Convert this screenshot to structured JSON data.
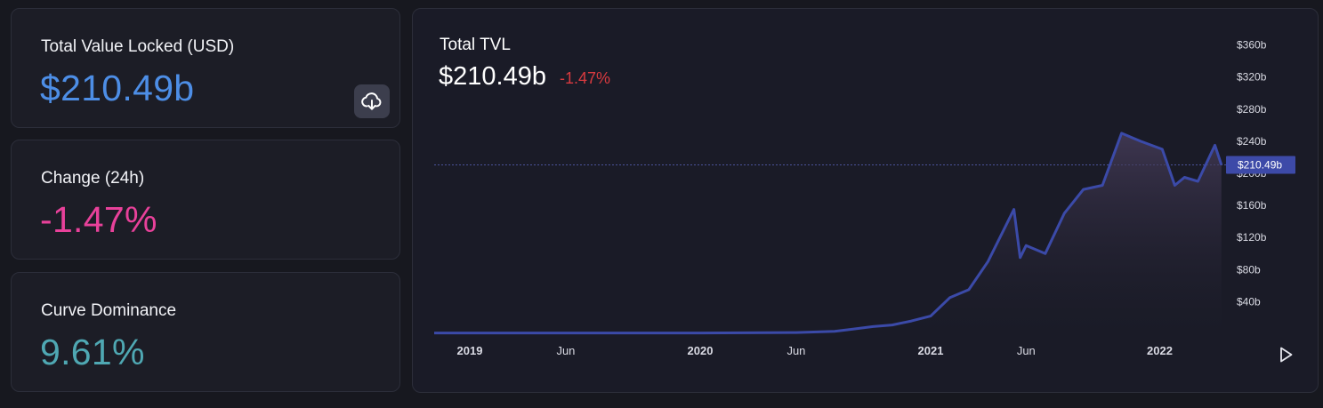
{
  "cards": {
    "tvl": {
      "label": "Total Value Locked (USD)",
      "value": "$210.49b"
    },
    "change": {
      "label": "Change (24h)",
      "value": "-1.47%"
    },
    "dominance": {
      "label": "Curve Dominance",
      "value": "9.61%"
    }
  },
  "icons": {
    "download": "cloud-download-icon",
    "play": "play-icon"
  },
  "colors": {
    "tvl_value": "#4d8ee6",
    "change_value": "#e8419a",
    "dominance_value": "#4fa8b3",
    "line": "#3b4aa8",
    "negative": "#d83a3f"
  },
  "chart": {
    "title": "Total TVL",
    "value": "$210.49b",
    "change": "-1.47%",
    "price_label": "$210.49b"
  },
  "chart_data": {
    "type": "area",
    "title": "Total TVL",
    "xlabel": "",
    "ylabel": "",
    "ylim": [
      0,
      360
    ],
    "y_ticks": [
      "$40b",
      "$80b",
      "$120b",
      "$160b",
      "$200b",
      "$240b",
      "$280b",
      "$320b",
      "$360b"
    ],
    "x_ticks": [
      "2019",
      "Jun",
      "2020",
      "Jun",
      "2021",
      "Jun",
      "2022"
    ],
    "current_value": 210.49,
    "grid": false,
    "x": [
      "2018-11",
      "2019-01",
      "2019-06",
      "2019-12",
      "2020-01",
      "2020-06",
      "2020-08",
      "2020-09",
      "2020-10",
      "2020-11",
      "2020-12",
      "2021-01",
      "2021-02",
      "2021-03",
      "2021-04",
      "2021-05-12",
      "2021-05-22",
      "2021-06",
      "2021-07",
      "2021-08",
      "2021-09",
      "2021-10",
      "2021-11",
      "2021-12",
      "2022-01-05",
      "2022-01-25",
      "2022-02-10",
      "2022-03-01",
      "2022-03-28",
      "2022-04-08"
    ],
    "values": [
      1,
      1,
      1,
      1,
      1,
      1.5,
      3,
      6,
      9,
      11,
      16,
      22,
      45,
      55,
      90,
      155,
      95,
      110,
      100,
      150,
      180,
      185,
      250,
      240,
      230,
      185,
      195,
      190,
      235,
      210.49
    ]
  }
}
